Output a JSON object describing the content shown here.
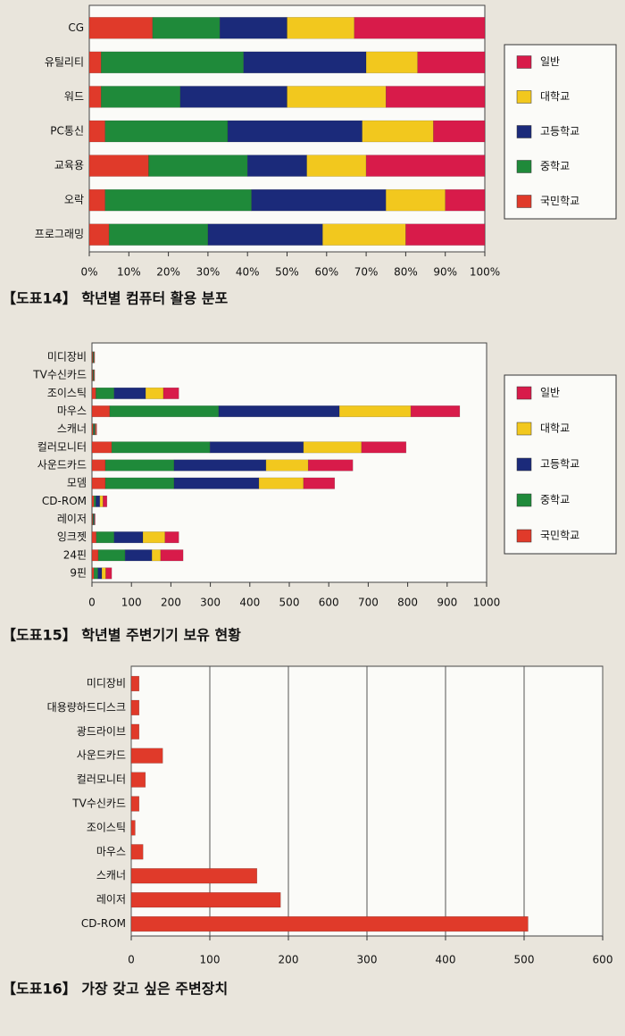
{
  "chart_data": [
    {
      "type": "bar",
      "stacked": true,
      "orientation": "horizontal",
      "title": "【도표14】 학년별 컴퓨터 활용 분포",
      "categories": [
        "CG",
        "유틸리티",
        "워드",
        "PC통신",
        "교육용",
        "오락",
        "프로그래밍"
      ],
      "series": [
        {
          "name": "국민학교",
          "color": "#e03a2a",
          "values": [
            16,
            3,
            3,
            4,
            15,
            4,
            5
          ]
        },
        {
          "name": "중학교",
          "color": "#1f8a3a",
          "values": [
            17,
            36,
            20,
            31,
            25,
            37,
            25
          ]
        },
        {
          "name": "고등학교",
          "color": "#1b2a7a",
          "values": [
            17,
            31,
            27,
            34,
            15,
            34,
            29
          ]
        },
        {
          "name": "대학교",
          "color": "#f2c81e",
          "values": [
            17,
            13,
            25,
            18,
            15,
            15,
            21
          ]
        },
        {
          "name": "일반",
          "color": "#d81b4a",
          "values": [
            33,
            17,
            25,
            13,
            30,
            10,
            20
          ]
        }
      ],
      "xlim": [
        0,
        100
      ],
      "xticks": [
        {
          "value": 0,
          "label": "0%"
        },
        {
          "value": 10,
          "label": "10%"
        },
        {
          "value": 20,
          "label": "20%"
        },
        {
          "value": 30,
          "label": "30%"
        },
        {
          "value": 40,
          "label": "40%"
        },
        {
          "value": 50,
          "label": "50%"
        },
        {
          "value": 60,
          "label": "60%"
        },
        {
          "value": 70,
          "label": "70%"
        },
        {
          "value": 80,
          "label": "80%"
        },
        {
          "value": 90,
          "label": "90%"
        },
        {
          "value": 100,
          "label": "100%"
        }
      ],
      "grid": false,
      "legend": "right"
    },
    {
      "type": "bar",
      "stacked": true,
      "orientation": "horizontal",
      "title": "【도표15】 학년별 주변기기 보유 현황",
      "categories": [
        "미디장비",
        "TV수신카드",
        "조이스틱",
        "마우스",
        "스캐너",
        "컬러모니터",
        "사운드카드",
        "모뎀",
        "CD-ROM",
        "레이저",
        "잉크젯",
        "24핀",
        "9핀"
      ],
      "series": [
        {
          "name": "국민학교",
          "color": "#e03a2a",
          "values": [
            2,
            2,
            10,
            45,
            3,
            50,
            34,
            34,
            5,
            2,
            11,
            16,
            5
          ]
        },
        {
          "name": "중학교",
          "color": "#1f8a3a",
          "values": [
            2,
            2,
            46,
            276,
            3,
            249,
            174,
            174,
            5,
            2,
            45,
            68,
            10
          ]
        },
        {
          "name": "고등학교",
          "color": "#1b2a7a",
          "values": [
            1,
            1,
            80,
            306,
            2,
            237,
            233,
            215,
            10,
            2,
            73,
            68,
            10
          ]
        },
        {
          "name": "대학교",
          "color": "#f2c81e",
          "values": [
            1,
            1,
            45,
            181,
            2,
            147,
            107,
            113,
            8,
            1,
            56,
            22,
            10
          ]
        },
        {
          "name": "일반",
          "color": "#d81b4a",
          "values": [
            1,
            1,
            39,
            124,
            2,
            113,
            113,
            79,
            10,
            1,
            35,
            57,
            15
          ]
        }
      ],
      "xlim": [
        0,
        1000
      ],
      "xticks": [
        0,
        100,
        200,
        300,
        400,
        500,
        600,
        700,
        800,
        900,
        1000
      ],
      "grid": false,
      "legend": "right"
    },
    {
      "type": "bar",
      "orientation": "horizontal",
      "title": "【도표16】 가장 갖고 싶은 주변장치",
      "categories": [
        "미디장비",
        "대용량하드디스크",
        "광드라이브",
        "사운드카드",
        "컬러모니터",
        "TV수신카드",
        "조이스틱",
        "마우스",
        "스캐너",
        "레이저",
        "CD-ROM"
      ],
      "values": [
        10,
        10,
        10,
        40,
        18,
        10,
        5,
        15,
        160,
        190,
        505
      ],
      "color": "#e03a2a",
      "xlim": [
        0,
        600
      ],
      "xticks": [
        0,
        100,
        200,
        300,
        400,
        500,
        600
      ],
      "grid": true
    }
  ]
}
